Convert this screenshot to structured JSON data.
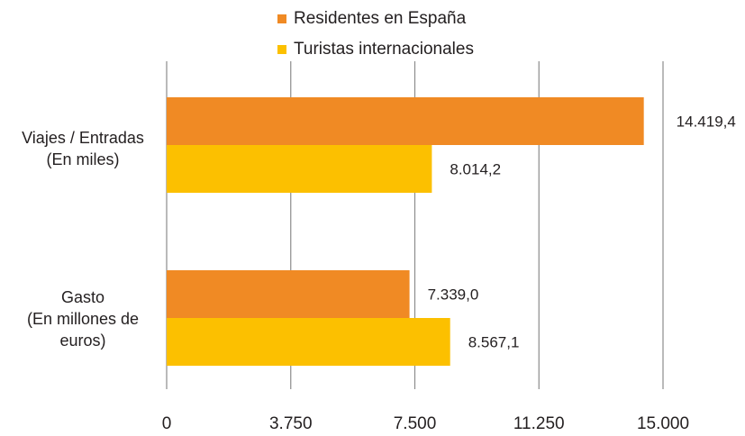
{
  "chart_data": {
    "type": "bar",
    "orientation": "horizontal",
    "categories": [
      [
        "Viajes / Entradas",
        "(En miles)"
      ],
      [
        "Gasto",
        "(En millones de",
        "euros)"
      ]
    ],
    "series": [
      {
        "name": "Residentes en España",
        "color": "#f08a24",
        "values": [
          14419.4,
          7339.0
        ],
        "labels": [
          "14.419,4",
          "7.339,0"
        ]
      },
      {
        "name": "Turistas internacionales",
        "color": "#fcc000",
        "values": [
          8014.2,
          8567.1
        ],
        "labels": [
          "8.014,2",
          "8.567,1"
        ]
      }
    ],
    "xlim": [
      0,
      15000
    ],
    "ticks": [
      0,
      3750,
      7500,
      11250,
      15000
    ],
    "tick_labels": [
      "0",
      "3.750",
      "7.500",
      "11.250",
      "15.000"
    ],
    "grid": "vertical",
    "legend_position": "top-center",
    "title": "",
    "xlabel": "",
    "ylabel": ""
  }
}
